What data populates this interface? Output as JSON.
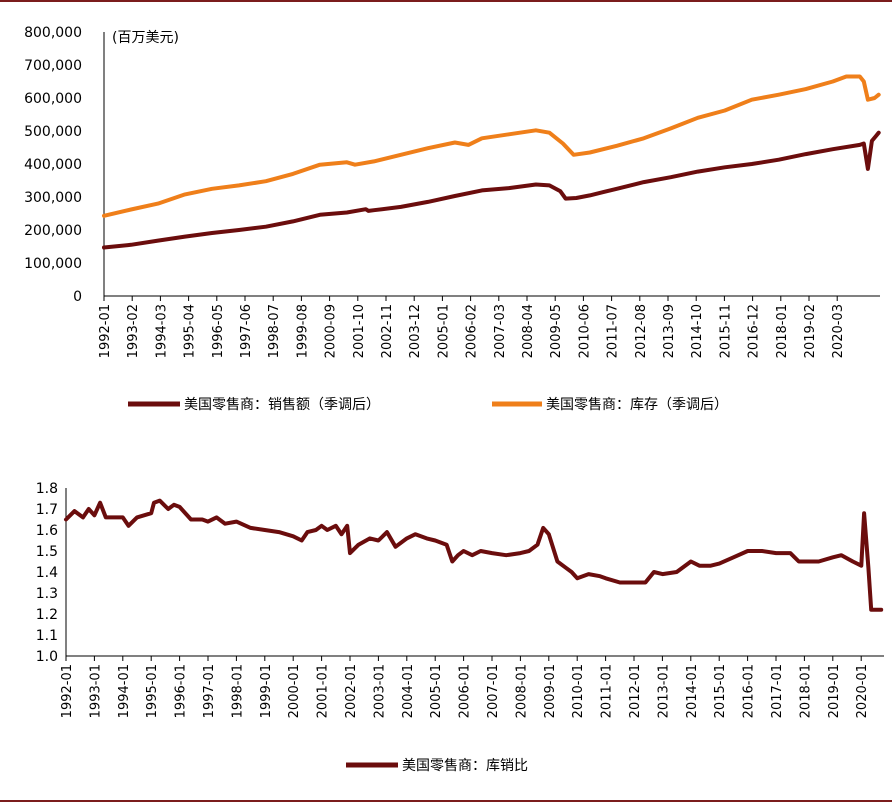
{
  "colors": {
    "sales": "#6b0d0d",
    "inventory": "#ef7f1a",
    "ratio": "#6b0d0d",
    "rule": "#7b1c1c"
  },
  "chart_data": [
    {
      "type": "line",
      "title": "",
      "unit_label": "(百万美元)",
      "ylim": [
        0,
        800000
      ],
      "yticks": [
        "0",
        "100,000",
        "200,000",
        "300,000",
        "400,000",
        "500,000",
        "600,000",
        "700,000",
        "800,000"
      ],
      "x_labels": [
        "1992-01",
        "1993-02",
        "1994-03",
        "1995-04",
        "1996-05",
        "1997-06",
        "1998-07",
        "1999-08",
        "2000-09",
        "2001-10",
        "2002-11",
        "2003-12",
        "2005-01",
        "2006-02",
        "2007-03",
        "2008-04",
        "2009-05",
        "2010-06",
        "2011-07",
        "2012-08",
        "2013-09",
        "2014-10",
        "2015-11",
        "2016-12",
        "2018-01",
        "2019-02",
        "2020-03"
      ],
      "series": [
        {
          "name": "美国零售商：销售额（季调后）",
          "color_key": "sales",
          "points": [
            [
              1992.0,
              147000
            ],
            [
              1993.0,
              155000
            ],
            [
              1994.0,
              168000
            ],
            [
              1995.0,
              180000
            ],
            [
              1996.0,
              191000
            ],
            [
              1997.0,
              200000
            ],
            [
              1998.0,
              210000
            ],
            [
              1999.0,
              226000
            ],
            [
              2000.0,
              246000
            ],
            [
              2001.0,
              253000
            ],
            [
              2001.7,
              263000
            ],
            [
              2001.8,
              258000
            ],
            [
              2002.0,
              260000
            ],
            [
              2003.0,
              270000
            ],
            [
              2004.0,
              285000
            ],
            [
              2005.0,
              303000
            ],
            [
              2006.0,
              320000
            ],
            [
              2007.0,
              327000
            ],
            [
              2008.0,
              338000
            ],
            [
              2008.5,
              335000
            ],
            [
              2008.9,
              318000
            ],
            [
              2009.1,
              295000
            ],
            [
              2009.5,
              297000
            ],
            [
              2010.0,
              305000
            ],
            [
              2010.5,
              315000
            ],
            [
              2011.0,
              325000
            ],
            [
              2012.0,
              345000
            ],
            [
              2013.0,
              360000
            ],
            [
              2014.0,
              377000
            ],
            [
              2015.0,
              390000
            ],
            [
              2016.0,
              400000
            ],
            [
              2017.0,
              413000
            ],
            [
              2018.0,
              430000
            ],
            [
              2019.0,
              445000
            ],
            [
              2020.0,
              458000
            ],
            [
              2020.15,
              462000
            ],
            [
              2020.3,
              385000
            ],
            [
              2020.45,
              470000
            ],
            [
              2020.6,
              485000
            ],
            [
              2020.7,
              495000
            ]
          ]
        },
        {
          "name": "美国零售商：库存（季调后）",
          "color_key": "inventory",
          "points": [
            [
              1992.0,
              243000
            ],
            [
              1993.0,
              262000
            ],
            [
              1994.0,
              280000
            ],
            [
              1995.0,
              308000
            ],
            [
              1996.0,
              325000
            ],
            [
              1997.0,
              335000
            ],
            [
              1998.0,
              348000
            ],
            [
              1999.0,
              370000
            ],
            [
              2000.0,
              398000
            ],
            [
              2001.0,
              405000
            ],
            [
              2001.3,
              398000
            ],
            [
              2002.0,
              408000
            ],
            [
              2003.0,
              428000
            ],
            [
              2004.0,
              448000
            ],
            [
              2005.0,
              465000
            ],
            [
              2005.5,
              458000
            ],
            [
              2006.0,
              478000
            ],
            [
              2007.0,
              490000
            ],
            [
              2008.0,
              502000
            ],
            [
              2008.5,
              495000
            ],
            [
              2009.0,
              462000
            ],
            [
              2009.4,
              428000
            ],
            [
              2010.0,
              435000
            ],
            [
              2011.0,
              455000
            ],
            [
              2012.0,
              478000
            ],
            [
              2013.0,
              508000
            ],
            [
              2014.0,
              540000
            ],
            [
              2015.0,
              562000
            ],
            [
              2016.0,
              595000
            ],
            [
              2017.0,
              610000
            ],
            [
              2018.0,
              627000
            ],
            [
              2019.0,
              650000
            ],
            [
              2019.5,
              665000
            ],
            [
              2020.0,
              665000
            ],
            [
              2020.15,
              650000
            ],
            [
              2020.3,
              595000
            ],
            [
              2020.55,
              600000
            ],
            [
              2020.7,
              610000
            ]
          ]
        }
      ]
    },
    {
      "type": "line",
      "title": "",
      "ylim": [
        1.0,
        1.8
      ],
      "yticks": [
        "1.0",
        "1.1",
        "1.2",
        "1.3",
        "1.4",
        "1.5",
        "1.6",
        "1.7",
        "1.8"
      ],
      "x_labels": [
        "1992-01",
        "1993-01",
        "1994-01",
        "1995-01",
        "1996-01",
        "1997-01",
        "1998-01",
        "1999-01",
        "2000-01",
        "2001-01",
        "2002-01",
        "2003-01",
        "2004-01",
        "2005-01",
        "2006-01",
        "2007-01",
        "2008-01",
        "2009-01",
        "2010-01",
        "2011-01",
        "2012-01",
        "2013-01",
        "2014-01",
        "2015-01",
        "2016-01",
        "2017-01",
        "2018-01",
        "2019-01",
        "2020-01"
      ],
      "series": [
        {
          "name": "美国零售商：库销比",
          "color_key": "ratio",
          "points": [
            [
              1992.0,
              1.65
            ],
            [
              1992.3,
              1.69
            ],
            [
              1992.6,
              1.66
            ],
            [
              1992.8,
              1.7
            ],
            [
              1993.0,
              1.67
            ],
            [
              1993.2,
              1.73
            ],
            [
              1993.4,
              1.66
            ],
            [
              1993.8,
              1.66
            ],
            [
              1994.0,
              1.66
            ],
            [
              1994.2,
              1.62
            ],
            [
              1994.5,
              1.66
            ],
            [
              1995.0,
              1.68
            ],
            [
              1995.1,
              1.73
            ],
            [
              1995.3,
              1.74
            ],
            [
              1995.6,
              1.7
            ],
            [
              1995.8,
              1.72
            ],
            [
              1996.0,
              1.71
            ],
            [
              1996.4,
              1.65
            ],
            [
              1996.8,
              1.65
            ],
            [
              1997.0,
              1.64
            ],
            [
              1997.3,
              1.66
            ],
            [
              1997.6,
              1.63
            ],
            [
              1998.0,
              1.64
            ],
            [
              1998.5,
              1.61
            ],
            [
              1999.0,
              1.6
            ],
            [
              1999.5,
              1.59
            ],
            [
              2000.0,
              1.57
            ],
            [
              2000.3,
              1.55
            ],
            [
              2000.5,
              1.59
            ],
            [
              2000.8,
              1.6
            ],
            [
              2001.0,
              1.62
            ],
            [
              2001.2,
              1.6
            ],
            [
              2001.5,
              1.62
            ],
            [
              2001.7,
              1.58
            ],
            [
              2001.9,
              1.62
            ],
            [
              2002.0,
              1.49
            ],
            [
              2002.3,
              1.53
            ],
            [
              2002.7,
              1.56
            ],
            [
              2003.0,
              1.55
            ],
            [
              2003.3,
              1.59
            ],
            [
              2003.6,
              1.52
            ],
            [
              2004.0,
              1.56
            ],
            [
              2004.3,
              1.58
            ],
            [
              2004.7,
              1.56
            ],
            [
              2005.0,
              1.55
            ],
            [
              2005.4,
              1.53
            ],
            [
              2005.6,
              1.45
            ],
            [
              2005.8,
              1.48
            ],
            [
              2006.0,
              1.5
            ],
            [
              2006.3,
              1.48
            ],
            [
              2006.6,
              1.5
            ],
            [
              2007.0,
              1.49
            ],
            [
              2007.5,
              1.48
            ],
            [
              2008.0,
              1.49
            ],
            [
              2008.3,
              1.5
            ],
            [
              2008.6,
              1.53
            ],
            [
              2008.8,
              1.61
            ],
            [
              2009.0,
              1.58
            ],
            [
              2009.3,
              1.45
            ],
            [
              2009.6,
              1.42
            ],
            [
              2009.8,
              1.4
            ],
            [
              2010.0,
              1.37
            ],
            [
              2010.4,
              1.39
            ],
            [
              2010.8,
              1.38
            ],
            [
              2011.0,
              1.37
            ],
            [
              2011.5,
              1.35
            ],
            [
              2012.0,
              1.35
            ],
            [
              2012.4,
              1.35
            ],
            [
              2012.7,
              1.4
            ],
            [
              2013.0,
              1.39
            ],
            [
              2013.5,
              1.4
            ],
            [
              2014.0,
              1.45
            ],
            [
              2014.3,
              1.43
            ],
            [
              2014.7,
              1.43
            ],
            [
              2015.0,
              1.44
            ],
            [
              2015.5,
              1.47
            ],
            [
              2016.0,
              1.5
            ],
            [
              2016.5,
              1.5
            ],
            [
              2017.0,
              1.49
            ],
            [
              2017.5,
              1.49
            ],
            [
              2017.8,
              1.45
            ],
            [
              2018.0,
              1.45
            ],
            [
              2018.5,
              1.45
            ],
            [
              2019.0,
              1.47
            ],
            [
              2019.3,
              1.48
            ],
            [
              2019.7,
              1.45
            ],
            [
              2020.0,
              1.43
            ],
            [
              2020.1,
              1.68
            ],
            [
              2020.25,
              1.42
            ],
            [
              2020.35,
              1.22
            ],
            [
              2020.7,
              1.22
            ]
          ]
        }
      ]
    }
  ]
}
